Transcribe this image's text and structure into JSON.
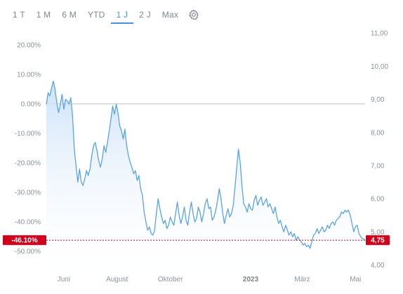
{
  "toolbar": {
    "tabs": [
      "1 T",
      "1 M",
      "6 M",
      "YTD",
      "1 J",
      "2 J",
      "Max"
    ],
    "active_tab": "1 J",
    "settings_icon": "gear-icon"
  },
  "colors": {
    "line": "#5ba3e6",
    "fill_top": "#c7dff8",
    "accent_tab": "#4a90d9",
    "marker_red": "#d0021b",
    "zero_line": "#b9bcc0"
  },
  "chart_data": {
    "type": "area",
    "title": "",
    "xlabel": "",
    "ylabel": "",
    "x_ticks": [
      {
        "label": "Juni",
        "date": "2022-06-01"
      },
      {
        "label": "August",
        "date": "2022-08-01"
      },
      {
        "label": "Oktober",
        "date": "2022-10-01"
      },
      {
        "label": "2023",
        "date": "2023-01-01",
        "bold": true
      },
      {
        "label": "März",
        "date": "2023-03-01"
      },
      {
        "label": "Mai",
        "date": "2023-05-01"
      }
    ],
    "left_axis": {
      "unit": "percent",
      "ticks": [
        "20.00%",
        "10.00%",
        "0.00%",
        "-10.00%",
        "-20.00%",
        "-30.00%",
        "-40.00%",
        "-50.00%"
      ],
      "tick_values": [
        20,
        10,
        0,
        -10,
        -20,
        -30,
        -40,
        -50
      ],
      "ylim": [
        -55.2,
        25.7
      ]
    },
    "right_axis": {
      "unit": "price",
      "ticks": [
        "11,00",
        "10,00",
        "9,00",
        "8,00",
        "7,00",
        "6,00",
        "5,00",
        "4,00"
      ],
      "tick_values": [
        11,
        10,
        9,
        8,
        7,
        6,
        5,
        4
      ],
      "ylim": [
        3.95,
        11.15
      ]
    },
    "baseline_price": 8.81,
    "current": {
      "percent_label": "-46.10%",
      "price_label": "4,75",
      "percent": -46.1,
      "price": 4.75
    },
    "x_range": [
      "2022-05-12",
      "2023-05-12"
    ],
    "series": [
      {
        "values": [
          [
            "2022-05-12",
            8.85
          ],
          [
            "2022-05-14",
            9.2
          ],
          [
            "2022-05-16",
            9.1
          ],
          [
            "2022-05-18",
            9.35
          ],
          [
            "2022-05-20",
            9.55
          ],
          [
            "2022-05-22",
            9.3
          ],
          [
            "2022-05-24",
            8.9
          ],
          [
            "2022-05-26",
            8.6
          ],
          [
            "2022-05-28",
            8.85
          ],
          [
            "2022-05-30",
            9.15
          ],
          [
            "2022-06-01",
            8.7
          ],
          [
            "2022-06-03",
            9.0
          ],
          [
            "2022-06-05",
            8.95
          ],
          [
            "2022-06-07",
            8.85
          ],
          [
            "2022-06-09",
            9.05
          ],
          [
            "2022-06-11",
            8.5
          ],
          [
            "2022-06-13",
            7.5
          ],
          [
            "2022-06-15",
            7.0
          ],
          [
            "2022-06-17",
            6.5
          ],
          [
            "2022-06-19",
            6.9
          ],
          [
            "2022-06-21",
            6.5
          ],
          [
            "2022-06-23",
            6.4
          ],
          [
            "2022-06-25",
            6.6
          ],
          [
            "2022-06-27",
            6.85
          ],
          [
            "2022-06-29",
            6.7
          ],
          [
            "2022-07-01",
            6.9
          ],
          [
            "2022-07-03",
            7.3
          ],
          [
            "2022-07-05",
            7.6
          ],
          [
            "2022-07-07",
            7.7
          ],
          [
            "2022-07-09",
            7.45
          ],
          [
            "2022-07-11",
            7.15
          ],
          [
            "2022-07-13",
            6.95
          ],
          [
            "2022-07-15",
            7.2
          ],
          [
            "2022-07-17",
            7.6
          ],
          [
            "2022-07-19",
            7.4
          ],
          [
            "2022-07-21",
            7.7
          ],
          [
            "2022-07-23",
            8.05
          ],
          [
            "2022-07-25",
            8.4
          ],
          [
            "2022-07-27",
            8.8
          ],
          [
            "2022-07-29",
            8.55
          ],
          [
            "2022-07-31",
            8.85
          ],
          [
            "2022-08-02",
            8.6
          ],
          [
            "2022-08-04",
            8.2
          ],
          [
            "2022-08-06",
            8.05
          ],
          [
            "2022-08-08",
            7.8
          ],
          [
            "2022-08-10",
            8.1
          ],
          [
            "2022-08-12",
            7.6
          ],
          [
            "2022-08-14",
            7.3
          ],
          [
            "2022-08-16",
            7.1
          ],
          [
            "2022-08-18",
            6.95
          ],
          [
            "2022-08-20",
            6.75
          ],
          [
            "2022-08-22",
            6.85
          ],
          [
            "2022-08-24",
            6.55
          ],
          [
            "2022-08-26",
            6.7
          ],
          [
            "2022-08-28",
            6.3
          ],
          [
            "2022-08-30",
            6.1
          ],
          [
            "2022-09-01",
            5.6
          ],
          [
            "2022-09-03",
            5.3
          ],
          [
            "2022-09-05",
            5.05
          ],
          [
            "2022-09-07",
            5.15
          ],
          [
            "2022-09-09",
            4.95
          ],
          [
            "2022-09-11",
            4.9
          ],
          [
            "2022-09-13",
            5.05
          ],
          [
            "2022-09-15",
            5.55
          ],
          [
            "2022-09-17",
            6.0
          ],
          [
            "2022-09-19",
            5.7
          ],
          [
            "2022-09-21",
            5.45
          ],
          [
            "2022-09-23",
            5.25
          ],
          [
            "2022-09-25",
            5.35
          ],
          [
            "2022-09-27",
            5.1
          ],
          [
            "2022-09-29",
            5.2
          ],
          [
            "2022-10-01",
            5.45
          ],
          [
            "2022-10-03",
            5.3
          ],
          [
            "2022-10-05",
            5.2
          ],
          [
            "2022-10-07",
            5.55
          ],
          [
            "2022-10-09",
            5.9
          ],
          [
            "2022-10-11",
            5.5
          ],
          [
            "2022-10-13",
            5.25
          ],
          [
            "2022-10-15",
            5.45
          ],
          [
            "2022-10-17",
            5.75
          ],
          [
            "2022-10-19",
            5.35
          ],
          [
            "2022-10-21",
            5.2
          ],
          [
            "2022-10-23",
            5.6
          ],
          [
            "2022-10-25",
            5.9
          ],
          [
            "2022-10-27",
            5.55
          ],
          [
            "2022-10-29",
            5.3
          ],
          [
            "2022-10-31",
            5.4
          ],
          [
            "2022-11-02",
            5.75
          ],
          [
            "2022-11-04",
            5.6
          ],
          [
            "2022-11-06",
            5.3
          ],
          [
            "2022-11-08",
            5.55
          ],
          [
            "2022-11-10",
            5.85
          ],
          [
            "2022-11-12",
            6.0
          ],
          [
            "2022-11-14",
            5.7
          ],
          [
            "2022-11-16",
            5.75
          ],
          [
            "2022-11-18",
            5.35
          ],
          [
            "2022-11-20",
            5.45
          ],
          [
            "2022-11-22",
            5.65
          ],
          [
            "2022-11-24",
            5.95
          ],
          [
            "2022-11-26",
            6.3
          ],
          [
            "2022-11-28",
            6.0
          ],
          [
            "2022-11-30",
            5.55
          ],
          [
            "2022-12-02",
            5.25
          ],
          [
            "2022-12-04",
            5.5
          ],
          [
            "2022-12-06",
            5.7
          ],
          [
            "2022-12-08",
            5.45
          ],
          [
            "2022-12-10",
            5.55
          ],
          [
            "2022-12-12",
            5.8
          ],
          [
            "2022-12-14",
            6.35
          ],
          [
            "2022-12-16",
            6.95
          ],
          [
            "2022-12-18",
            7.5
          ],
          [
            "2022-12-20",
            7.1
          ],
          [
            "2022-12-22",
            6.4
          ],
          [
            "2022-12-24",
            5.85
          ],
          [
            "2022-12-26",
            5.75
          ],
          [
            "2022-12-28",
            5.6
          ],
          [
            "2022-12-30",
            5.85
          ],
          [
            "2023-01-01",
            5.7
          ],
          [
            "2023-01-03",
            5.65
          ],
          [
            "2023-01-05",
            5.95
          ],
          [
            "2023-01-07",
            6.1
          ],
          [
            "2023-01-09",
            5.8
          ],
          [
            "2023-01-11",
            5.95
          ],
          [
            "2023-01-13",
            6.05
          ],
          [
            "2023-01-15",
            5.8
          ],
          [
            "2023-01-17",
            5.9
          ],
          [
            "2023-01-19",
            6.0
          ],
          [
            "2023-01-21",
            5.75
          ],
          [
            "2023-01-23",
            5.85
          ],
          [
            "2023-01-25",
            5.7
          ],
          [
            "2023-01-27",
            5.55
          ],
          [
            "2023-01-29",
            5.75
          ],
          [
            "2023-01-31",
            5.45
          ],
          [
            "2023-02-02",
            5.25
          ],
          [
            "2023-02-04",
            5.35
          ],
          [
            "2023-02-06",
            5.15
          ],
          [
            "2023-02-08",
            5.0
          ],
          [
            "2023-02-10",
            5.2
          ],
          [
            "2023-02-12",
            5.05
          ],
          [
            "2023-02-14",
            4.9
          ],
          [
            "2023-02-16",
            5.0
          ],
          [
            "2023-02-18",
            4.85
          ],
          [
            "2023-02-20",
            4.95
          ],
          [
            "2023-02-22",
            4.75
          ],
          [
            "2023-02-24",
            4.85
          ],
          [
            "2023-02-26",
            4.75
          ],
          [
            "2023-02-28",
            4.7
          ],
          [
            "2023-03-02",
            4.6
          ],
          [
            "2023-03-04",
            4.65
          ],
          [
            "2023-03-06",
            4.55
          ],
          [
            "2023-03-08",
            4.6
          ],
          [
            "2023-03-10",
            4.5
          ],
          [
            "2023-03-12",
            4.7
          ],
          [
            "2023-03-14",
            4.9
          ],
          [
            "2023-03-16",
            4.95
          ],
          [
            "2023-03-18",
            5.1
          ],
          [
            "2023-03-20",
            4.95
          ],
          [
            "2023-03-22",
            5.05
          ],
          [
            "2023-03-24",
            5.15
          ],
          [
            "2023-03-26",
            5.0
          ],
          [
            "2023-03-28",
            5.05
          ],
          [
            "2023-03-30",
            5.2
          ],
          [
            "2023-04-01",
            5.1
          ],
          [
            "2023-04-03",
            5.25
          ],
          [
            "2023-04-05",
            5.3
          ],
          [
            "2023-04-07",
            5.2
          ],
          [
            "2023-04-09",
            5.35
          ],
          [
            "2023-04-11",
            5.4
          ],
          [
            "2023-04-13",
            5.45
          ],
          [
            "2023-04-15",
            5.6
          ],
          [
            "2023-04-17",
            5.55
          ],
          [
            "2023-04-19",
            5.65
          ],
          [
            "2023-04-21",
            5.6
          ],
          [
            "2023-04-23",
            5.65
          ],
          [
            "2023-04-25",
            5.5
          ],
          [
            "2023-04-27",
            5.25
          ],
          [
            "2023-04-29",
            5.0
          ],
          [
            "2023-05-01",
            5.15
          ],
          [
            "2023-05-03",
            5.2
          ],
          [
            "2023-05-05",
            4.95
          ],
          [
            "2023-05-07",
            4.85
          ],
          [
            "2023-05-09",
            4.8
          ],
          [
            "2023-05-12",
            4.75
          ]
        ]
      }
    ],
    "grid": false,
    "legend": "none"
  }
}
